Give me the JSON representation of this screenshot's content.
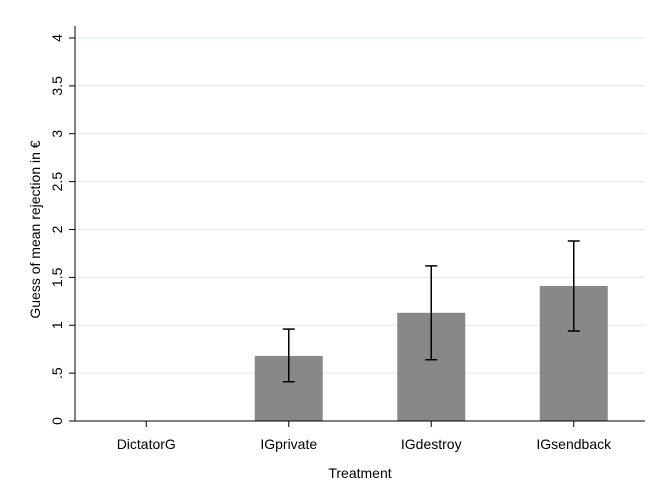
{
  "chart_data": {
    "type": "bar",
    "title": "",
    "xlabel": "Treatment",
    "ylabel": "Guess of mean rejection in €",
    "categories": [
      "DictatorG",
      "IGprivate",
      "IGdestroy",
      "IGsendback"
    ],
    "values": [
      0,
      0.68,
      1.13,
      1.41
    ],
    "error_low": [
      null,
      0.41,
      0.64,
      0.94
    ],
    "error_high": [
      null,
      0.96,
      1.62,
      1.88
    ],
    "ylim": [
      0,
      4
    ],
    "yticks": [
      0,
      0.5,
      1,
      1.5,
      2,
      2.5,
      3,
      3.5,
      4
    ],
    "ytick_labels": [
      "0",
      ".5",
      "1",
      "1.5",
      "2",
      "2.5",
      "3",
      "3.5",
      "4"
    ],
    "grid": true,
    "bar_color": "#888888",
    "gridline_color": "#dce9ea",
    "error_bar_color": "#000000"
  }
}
